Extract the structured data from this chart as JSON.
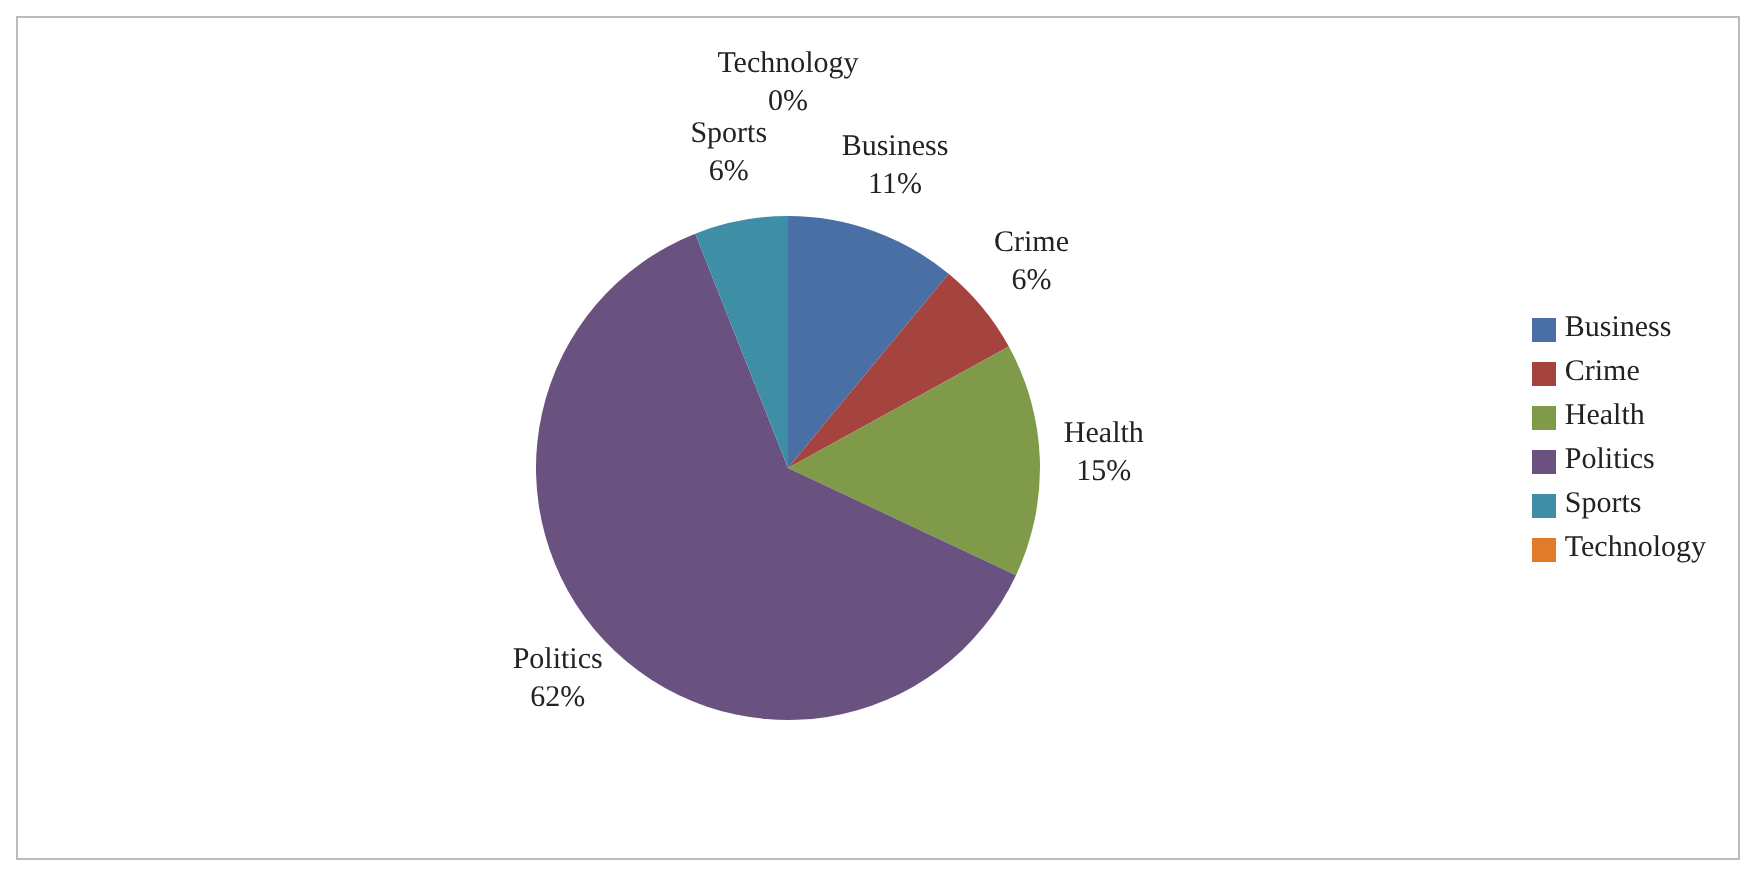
{
  "chart_data": {
    "type": "pie",
    "categories": [
      "Business",
      "Crime",
      "Health",
      "Politics",
      "Sports",
      "Technology"
    ],
    "values": [
      11,
      6,
      15,
      62,
      6,
      0
    ],
    "colors": [
      "#4a6fa5",
      "#a5443f",
      "#7f9a48",
      "#69527f",
      "#3e8fa5",
      "#e07b2a"
    ],
    "value_labels": [
      "11%",
      "6%",
      "15%",
      "62%",
      "6%",
      "0%"
    ],
    "legend": "right"
  }
}
